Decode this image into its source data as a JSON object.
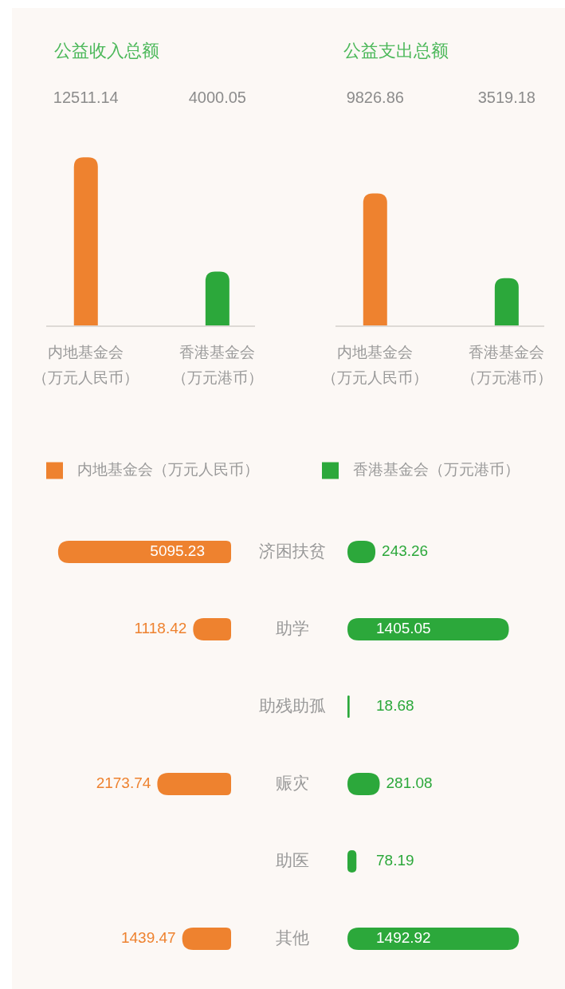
{
  "chart_data": [
    {
      "type": "bar",
      "title": "公益收入总额",
      "categories": [
        "内地基金会（万元人民币）",
        "香港基金会（万元港币）"
      ],
      "values": [
        12511.14,
        4000.05
      ],
      "colors": [
        "#ee822f",
        "#2ca83b"
      ],
      "data_labels": true
    },
    {
      "type": "bar",
      "title": "公益支出总额",
      "categories": [
        "内地基金会（万元人民币）",
        "香港基金会（万元港币）"
      ],
      "values": [
        9826.86,
        3519.18
      ],
      "colors": [
        "#ee822f",
        "#2ca83b"
      ],
      "data_labels": true
    },
    {
      "type": "bar",
      "orientation": "horizontal",
      "categories": [
        "济困扶贫",
        "助学",
        "助残助孤",
        "赈灾",
        "助医",
        "其他"
      ],
      "series": [
        {
          "name": "内地基金会（万元人民币）",
          "color": "#ee822f",
          "values": [
            5095.23,
            1118.42,
            null,
            2173.74,
            null,
            1439.47
          ]
        }
      ],
      "legend": "top",
      "data_labels": true
    },
    {
      "type": "bar",
      "orientation": "horizontal",
      "categories": [
        null,
        null,
        null,
        null,
        null,
        null
      ],
      "series": [
        {
          "name": "香港基金会（万元港币）",
          "color": "#2ca83b",
          "values": [
            243.26,
            1405.05,
            18.68,
            281.08,
            78.19,
            1492.92
          ]
        }
      ],
      "legend": "top",
      "data_labels": true
    }
  ]
}
